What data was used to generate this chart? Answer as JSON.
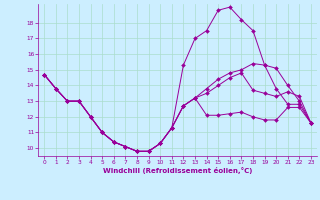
{
  "xlabel": "Windchill (Refroidissement éolien,°C)",
  "background_color": "#cceeff",
  "line_color": "#990099",
  "xlim": [
    -0.5,
    23.5
  ],
  "ylim": [
    9.5,
    19.2
  ],
  "xticks": [
    0,
    1,
    2,
    3,
    4,
    5,
    6,
    7,
    8,
    9,
    10,
    11,
    12,
    13,
    14,
    15,
    16,
    17,
    18,
    19,
    20,
    21,
    22,
    23
  ],
  "yticks": [
    10,
    11,
    12,
    13,
    14,
    15,
    16,
    17,
    18
  ],
  "grid_color": "#aaddcc",
  "series": [
    {
      "x": [
        0,
        1,
        2,
        3,
        4,
        5,
        6,
        7,
        8,
        9,
        10,
        11,
        12,
        13,
        14,
        15,
        16,
        17,
        18,
        19,
        20,
        21,
        22,
        23
      ],
      "y": [
        14.7,
        13.8,
        13.0,
        13.0,
        12.0,
        11.0,
        10.4,
        10.1,
        9.8,
        9.8,
        10.3,
        11.3,
        12.7,
        13.2,
        12.1,
        12.1,
        12.2,
        12.3,
        12.0,
        11.8,
        11.8,
        12.6,
        12.6,
        11.6
      ]
    },
    {
      "x": [
        0,
        1,
        2,
        3,
        4,
        5,
        6,
        7,
        8,
        9,
        10,
        11,
        12,
        13,
        14,
        15,
        16,
        17,
        18,
        19,
        20,
        21,
        22,
        23
      ],
      "y": [
        14.7,
        13.8,
        13.0,
        13.0,
        12.0,
        11.0,
        10.4,
        10.1,
        9.8,
        9.8,
        10.3,
        11.3,
        15.3,
        17.0,
        17.5,
        18.8,
        19.0,
        18.2,
        17.5,
        15.3,
        13.8,
        12.8,
        12.8,
        11.6
      ]
    },
    {
      "x": [
        0,
        1,
        2,
        3,
        4,
        5,
        6,
        7,
        8,
        9,
        10,
        11,
        12,
        13,
        14,
        15,
        16,
        17,
        18,
        19,
        20,
        21,
        22,
        23
      ],
      "y": [
        14.7,
        13.8,
        13.0,
        13.0,
        12.0,
        11.0,
        10.4,
        10.1,
        9.8,
        9.8,
        10.3,
        11.3,
        12.7,
        13.2,
        13.8,
        14.4,
        14.8,
        15.0,
        15.4,
        15.3,
        15.1,
        14.0,
        13.0,
        11.6
      ]
    },
    {
      "x": [
        0,
        1,
        2,
        3,
        4,
        5,
        6,
        7,
        8,
        9,
        10,
        11,
        12,
        13,
        14,
        15,
        16,
        17,
        18,
        19,
        20,
        21,
        22,
        23
      ],
      "y": [
        14.7,
        13.8,
        13.0,
        13.0,
        12.0,
        11.0,
        10.4,
        10.1,
        9.8,
        9.8,
        10.3,
        11.3,
        12.7,
        13.2,
        13.5,
        14.0,
        14.5,
        14.8,
        13.7,
        13.5,
        13.3,
        13.6,
        13.3,
        11.6
      ]
    }
  ]
}
